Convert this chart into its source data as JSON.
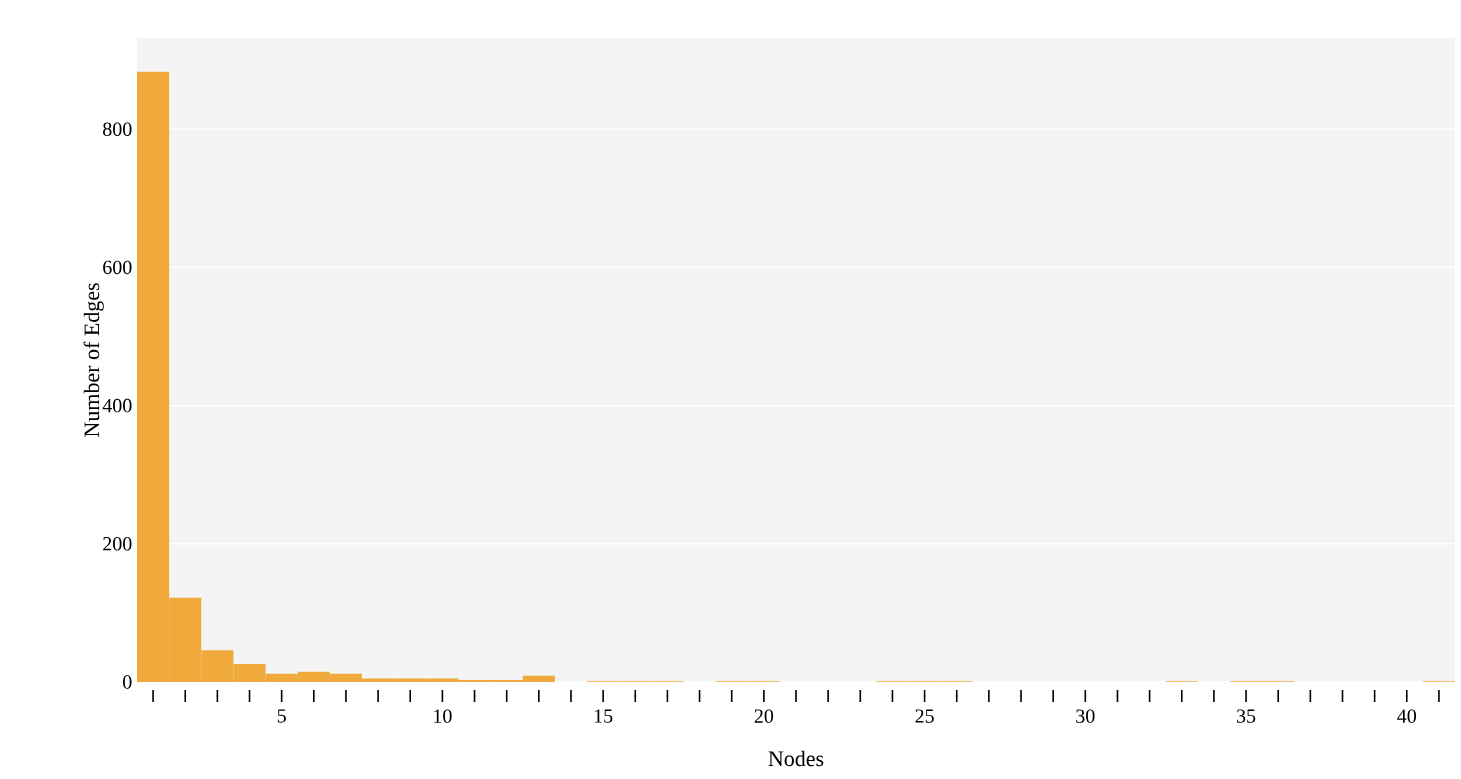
{
  "chart_data": {
    "type": "histogram",
    "xlabel": "Nodes",
    "ylabel": "Number of Edges",
    "color": "#f0aa3c",
    "bins": [
      0.5,
      1.5,
      2.5,
      3.5,
      4.5,
      5.5,
      6.5,
      7.5,
      8.5,
      9.5,
      10.5,
      11.5,
      12.5,
      13.5,
      14.5,
      15.5,
      16.5,
      17.5,
      18.5,
      19.5,
      20.5,
      21.5,
      22.5,
      23.5,
      24.5,
      25.5,
      26.5,
      27.5,
      28.5,
      29.5,
      30.5,
      31.5,
      32.5,
      33.5,
      34.5,
      35.5,
      36.5,
      37.5,
      38.5,
      39.5,
      40.5,
      41.5
    ],
    "values": [
      883,
      122,
      46,
      26,
      12,
      15,
      12,
      5,
      5,
      5,
      3,
      3,
      9,
      0,
      1,
      1,
      1,
      0,
      1,
      1,
      0,
      0,
      0,
      1,
      1,
      1,
      0,
      0,
      0,
      0,
      0,
      0,
      1,
      0,
      1,
      1,
      0,
      0,
      0,
      0,
      1
    ],
    "xlim": [
      0.5,
      41.5
    ],
    "ylim": [
      0,
      932
    ],
    "xticks": [
      {
        "value": 1,
        "label": null
      },
      {
        "value": 2,
        "label": null
      },
      {
        "value": 3,
        "label": null
      },
      {
        "value": 4,
        "label": null
      },
      5,
      {
        "value": 6,
        "label": null
      },
      {
        "value": 7,
        "label": null
      },
      {
        "value": 8,
        "label": null
      },
      {
        "value": 9,
        "label": null
      },
      10,
      {
        "value": 11,
        "label": null
      },
      {
        "value": 12,
        "label": null
      },
      {
        "value": 13,
        "label": null
      },
      {
        "value": 14,
        "label": null
      },
      15,
      {
        "value": 16,
        "label": null
      },
      {
        "value": 17,
        "label": null
      },
      {
        "value": 18,
        "label": null
      },
      {
        "value": 19,
        "label": null
      },
      20,
      {
        "value": 21,
        "label": null
      },
      {
        "value": 22,
        "label": null
      },
      {
        "value": 23,
        "label": null
      },
      {
        "value": 24,
        "label": null
      },
      25,
      {
        "value": 26,
        "label": null
      },
      {
        "value": 27,
        "label": null
      },
      {
        "value": 28,
        "label": null
      },
      {
        "value": 29,
        "label": null
      },
      30,
      {
        "value": 31,
        "label": null
      },
      {
        "value": 32,
        "label": null
      },
      {
        "value": 33,
        "label": null
      },
      {
        "value": 34,
        "label": null
      },
      35,
      {
        "value": 36,
        "label": null
      },
      {
        "value": 37,
        "label": null
      },
      {
        "value": 38,
        "label": null
      },
      {
        "value": 39,
        "label": null
      },
      40,
      {
        "value": 41,
        "label": null
      }
    ],
    "yticks": [
      0,
      200,
      400,
      600,
      800
    ],
    "grid": "y"
  }
}
